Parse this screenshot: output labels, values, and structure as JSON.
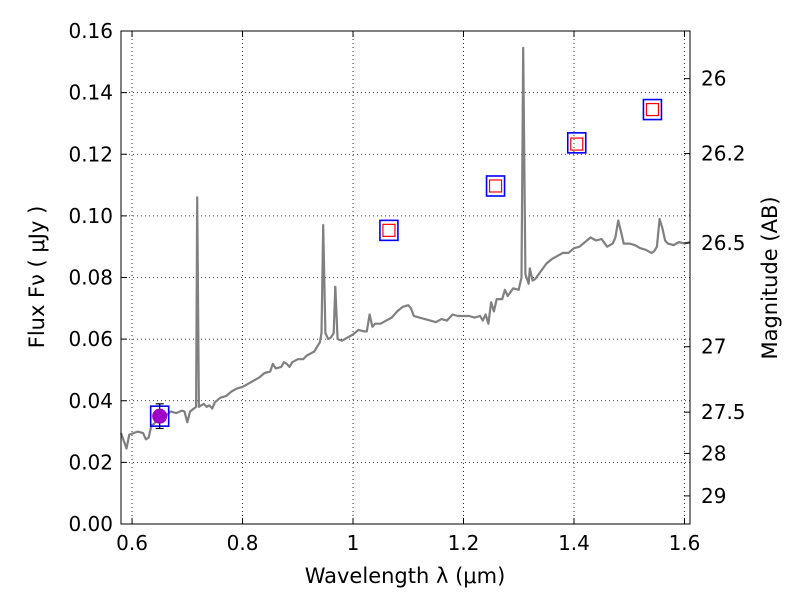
{
  "chart_data": {
    "type": "line",
    "title": "",
    "xlabel": "Wavelength  λ (μm)",
    "ylabel": "Flux  Fν  ( μJy )",
    "y2label": "Magnitude (AB)",
    "xlim": [
      0.58,
      1.61
    ],
    "ylim": [
      0.0,
      0.16
    ],
    "grid": true,
    "x_ticks": [
      0.6,
      0.8,
      1.0,
      1.2,
      1.4,
      1.6
    ],
    "x_tick_labels": [
      "0.6",
      "0.8",
      "1",
      "1.2",
      "1.4",
      "1.6"
    ],
    "y_ticks": [
      0.0,
      0.02,
      0.04,
      0.06,
      0.08,
      0.1,
      0.12,
      0.14,
      0.16
    ],
    "y_tick_labels": [
      "0.00",
      "0.02",
      "0.04",
      "0.06",
      "0.08",
      "0.10",
      "0.12",
      "0.14",
      "0.16"
    ],
    "y2_ticks": [
      26,
      26.2,
      26.5,
      27,
      27.5,
      28,
      29
    ],
    "y2_tick_labels": [
      "26",
      "26.2",
      "26.5",
      "27",
      "27.5",
      "28",
      "29"
    ],
    "model_spectrum": {
      "color": "#808080",
      "points": [
        [
          0.58,
          0.0295
        ],
        [
          0.59,
          0.0245
        ],
        [
          0.595,
          0.029
        ],
        [
          0.61,
          0.03
        ],
        [
          0.62,
          0.0295
        ],
        [
          0.625,
          0.0275
        ],
        [
          0.63,
          0.028
        ],
        [
          0.635,
          0.032
        ],
        [
          0.64,
          0.0325
        ],
        [
          0.65,
          0.0355
        ],
        [
          0.66,
          0.035
        ],
        [
          0.67,
          0.0365
        ],
        [
          0.68,
          0.036
        ],
        [
          0.69,
          0.0368
        ],
        [
          0.695,
          0.0365
        ],
        [
          0.7,
          0.033
        ],
        [
          0.705,
          0.0365
        ],
        [
          0.712,
          0.0375
        ],
        [
          0.716,
          0.038
        ],
        [
          0.718,
          0.106
        ],
        [
          0.721,
          0.038
        ],
        [
          0.725,
          0.0385
        ],
        [
          0.73,
          0.039
        ],
        [
          0.735,
          0.038
        ],
        [
          0.74,
          0.0385
        ],
        [
          0.745,
          0.0375
        ],
        [
          0.75,
          0.0395
        ],
        [
          0.76,
          0.041
        ],
        [
          0.77,
          0.0415
        ],
        [
          0.78,
          0.043
        ],
        [
          0.79,
          0.044
        ],
        [
          0.8,
          0.0445
        ],
        [
          0.81,
          0.0455
        ],
        [
          0.82,
          0.0465
        ],
        [
          0.83,
          0.0475
        ],
        [
          0.84,
          0.049
        ],
        [
          0.85,
          0.0495
        ],
        [
          0.855,
          0.052
        ],
        [
          0.86,
          0.0505
        ],
        [
          0.87,
          0.051
        ],
        [
          0.875,
          0.0525
        ],
        [
          0.88,
          0.052
        ],
        [
          0.885,
          0.051
        ],
        [
          0.89,
          0.0525
        ],
        [
          0.9,
          0.0535
        ],
        [
          0.91,
          0.0535
        ],
        [
          0.915,
          0.0545
        ],
        [
          0.92,
          0.055
        ],
        [
          0.93,
          0.056
        ],
        [
          0.935,
          0.0575
        ],
        [
          0.94,
          0.059
        ],
        [
          0.943,
          0.062
        ],
        [
          0.946,
          0.097
        ],
        [
          0.95,
          0.062
        ],
        [
          0.955,
          0.06
        ],
        [
          0.96,
          0.0605
        ],
        [
          0.965,
          0.062
        ],
        [
          0.968,
          0.077
        ],
        [
          0.972,
          0.06
        ],
        [
          0.98,
          0.0595
        ],
        [
          0.99,
          0.0605
        ],
        [
          1.0,
          0.0615
        ],
        [
          1.01,
          0.063
        ],
        [
          1.02,
          0.0625
        ],
        [
          1.025,
          0.0625
        ],
        [
          1.03,
          0.068
        ],
        [
          1.035,
          0.064
        ],
        [
          1.04,
          0.065
        ],
        [
          1.05,
          0.065
        ],
        [
          1.06,
          0.066
        ],
        [
          1.07,
          0.067
        ],
        [
          1.08,
          0.069
        ],
        [
          1.09,
          0.0705
        ],
        [
          1.1,
          0.071
        ],
        [
          1.105,
          0.07
        ],
        [
          1.11,
          0.0675
        ],
        [
          1.12,
          0.067
        ],
        [
          1.13,
          0.0665
        ],
        [
          1.14,
          0.066
        ],
        [
          1.15,
          0.0655
        ],
        [
          1.16,
          0.0665
        ],
        [
          1.17,
          0.066
        ],
        [
          1.18,
          0.068
        ],
        [
          1.19,
          0.0675
        ],
        [
          1.2,
          0.0675
        ],
        [
          1.21,
          0.0675
        ],
        [
          1.22,
          0.067
        ],
        [
          1.23,
          0.0675
        ],
        [
          1.235,
          0.066
        ],
        [
          1.24,
          0.068
        ],
        [
          1.245,
          0.065
        ],
        [
          1.25,
          0.072
        ],
        [
          1.255,
          0.069
        ],
        [
          1.26,
          0.073
        ],
        [
          1.27,
          0.073
        ],
        [
          1.275,
          0.076
        ],
        [
          1.28,
          0.074
        ],
        [
          1.29,
          0.0765
        ],
        [
          1.3,
          0.076
        ],
        [
          1.305,
          0.08
        ],
        [
          1.308,
          0.1545
        ],
        [
          1.312,
          0.081
        ],
        [
          1.318,
          0.078
        ],
        [
          1.32,
          0.083
        ],
        [
          1.325,
          0.079
        ],
        [
          1.33,
          0.0795
        ],
        [
          1.34,
          0.082
        ],
        [
          1.35,
          0.0845
        ],
        [
          1.36,
          0.086
        ],
        [
          1.37,
          0.087
        ],
        [
          1.38,
          0.088
        ],
        [
          1.39,
          0.088
        ],
        [
          1.4,
          0.0895
        ],
        [
          1.41,
          0.09
        ],
        [
          1.42,
          0.0915
        ],
        [
          1.43,
          0.093
        ],
        [
          1.44,
          0.092
        ],
        [
          1.45,
          0.0925
        ],
        [
          1.46,
          0.09
        ],
        [
          1.47,
          0.091
        ],
        [
          1.475,
          0.093
        ],
        [
          1.48,
          0.0985
        ],
        [
          1.485,
          0.095
        ],
        [
          1.49,
          0.091
        ],
        [
          1.5,
          0.091
        ],
        [
          1.51,
          0.0905
        ],
        [
          1.52,
          0.0895
        ],
        [
          1.53,
          0.089
        ],
        [
          1.54,
          0.088
        ],
        [
          1.545,
          0.0885
        ],
        [
          1.55,
          0.09
        ],
        [
          1.555,
          0.099
        ],
        [
          1.56,
          0.096
        ],
        [
          1.565,
          0.092
        ],
        [
          1.57,
          0.091
        ],
        [
          1.58,
          0.0905
        ],
        [
          1.59,
          0.0915
        ],
        [
          1.6,
          0.091
        ],
        [
          1.61,
          0.0915
        ]
      ]
    },
    "synthetic_photometry": {
      "marker": "square",
      "edge_color": "#0000ff",
      "points": [
        [
          0.65,
          0.035
        ],
        [
          1.065,
          0.0953
        ],
        [
          1.258,
          0.1097
        ],
        [
          1.405,
          0.1237
        ],
        [
          1.542,
          0.1345
        ]
      ]
    },
    "model_photometry": {
      "marker": "square",
      "edge_color": "#ff0000",
      "points": [
        [
          0.65,
          0.035
        ],
        [
          1.065,
          0.0953
        ],
        [
          1.258,
          0.1097
        ],
        [
          1.405,
          0.1233
        ],
        [
          1.542,
          0.1345
        ]
      ]
    },
    "observed_photometry": {
      "marker": "circle",
      "color": "#a000c8",
      "points": [
        {
          "x": 0.65,
          "y": 0.035,
          "err": 0.004
        }
      ]
    }
  }
}
